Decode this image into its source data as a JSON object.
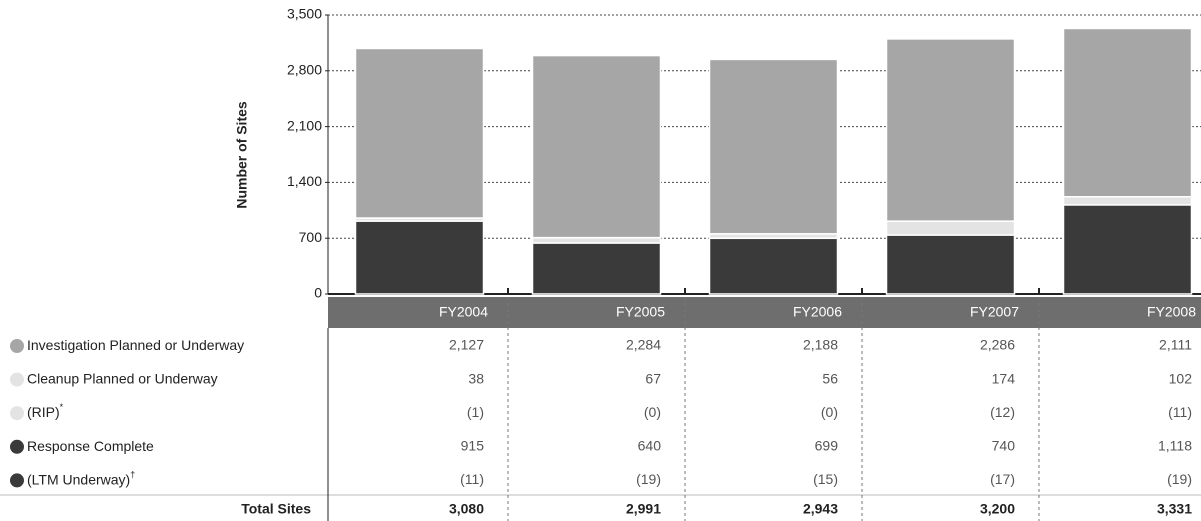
{
  "chart_data": {
    "type": "bar",
    "stacked": true,
    "y_label": "Number of Sites",
    "categories": [
      "FY2004",
      "FY2005",
      "FY2006",
      "FY2007",
      "FY2008"
    ],
    "ylim": [
      0,
      3500
    ],
    "yticks": [
      0,
      700,
      {
        "value": 1400,
        "label": "1,400"
      },
      {
        "value": 2100,
        "label": "2,100"
      },
      {
        "value": 2800,
        "label": "2,800"
      },
      {
        "value": 3500,
        "label": "3,500"
      }
    ],
    "grid": true,
    "series": [
      {
        "name": "Investigation Planned or Underway",
        "color": "#a6a6a6",
        "values": [
          2127,
          2284,
          2188,
          2286,
          2111
        ],
        "value_labels": [
          "2,127",
          "2,284",
          "2,188",
          "2,286",
          "2,111"
        ]
      },
      {
        "name": "Cleanup Planned or Underway",
        "color": "#e3e3e3",
        "values": [
          38,
          67,
          56,
          174,
          102
        ]
      },
      {
        "name": "Response Complete",
        "color": "#3a3a3a",
        "values": [
          915,
          640,
          699,
          740,
          1118
        ],
        "value_labels": [
          "915",
          "640",
          "699",
          "740",
          "1,118"
        ]
      }
    ],
    "subsets": [
      {
        "name": "(RIP)",
        "note_mark": "*",
        "color": "#e3e3e3",
        "values": [
          1,
          0,
          0,
          12,
          11
        ],
        "value_labels": [
          "(1)",
          "(0)",
          "(0)",
          "(12)",
          "(11)"
        ]
      },
      {
        "name": "(LTM Underway)",
        "note_mark": "†",
        "color": "#3a3a3a",
        "values": [
          11,
          19,
          15,
          17,
          19
        ],
        "value_labels": [
          "(11)",
          "(19)",
          "(15)",
          "(17)",
          "(19)"
        ]
      }
    ],
    "total_label": "Total Sites",
    "totals": [
      3080,
      2991,
      2943,
      3200,
      3331
    ],
    "total_labels": [
      "3,080",
      "2,991",
      "2,943",
      "3,200",
      "3,331"
    ]
  }
}
